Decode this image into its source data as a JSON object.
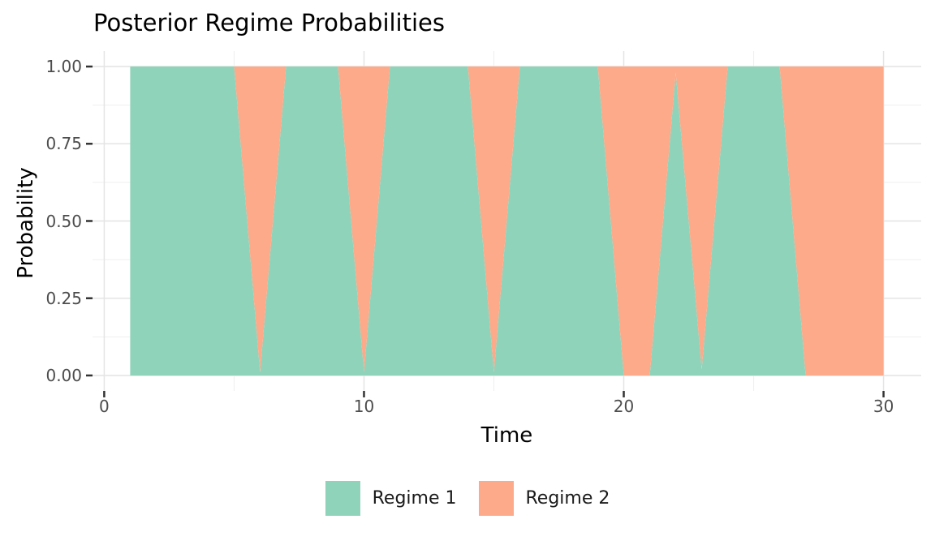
{
  "title": "Posterior Regime Probabilities",
  "chart_data": {
    "type": "area",
    "stacked": true,
    "title": "Posterior Regime Probabilities",
    "xlabel": "Time",
    "ylabel": "Probability",
    "x": [
      1,
      2,
      3,
      4,
      5,
      6,
      7,
      8,
      9,
      10,
      11,
      12,
      13,
      14,
      15,
      16,
      17,
      18,
      19,
      20,
      21,
      22,
      23,
      24,
      25,
      26,
      27,
      28,
      29,
      30
    ],
    "series": [
      {
        "name": "Regime 1",
        "color": "#8FD3BA",
        "values": [
          1,
          1,
          1,
          1,
          1,
          0.01,
          1,
          1,
          1,
          0.01,
          1,
          1,
          1,
          1,
          0.01,
          1,
          1,
          1,
          1,
          0,
          0,
          0.98,
          0.02,
          1,
          1,
          1,
          0,
          0,
          0,
          0
        ]
      },
      {
        "name": "Regime 2",
        "color": "#FCAA8A",
        "values": [
          0,
          0,
          0,
          0,
          0,
          0.99,
          0,
          0,
          0,
          0.99,
          0,
          0,
          0,
          0,
          0.99,
          0,
          0,
          0,
          0,
          1,
          1,
          0.02,
          0.98,
          0,
          0,
          0,
          1,
          1,
          1,
          1
        ]
      }
    ],
    "xlim": [
      0,
      30
    ],
    "ylim": [
      0,
      1
    ],
    "x_ticks": {
      "values": [
        0,
        10,
        20,
        30
      ],
      "labels": [
        "0",
        "10",
        "20",
        "30"
      ],
      "minor": [
        5,
        15,
        25
      ]
    },
    "y_ticks": {
      "values": [
        0,
        0.25,
        0.5,
        0.75,
        1
      ],
      "labels": [
        "0.00",
        "0.25",
        "0.50",
        "0.75",
        "1.00"
      ],
      "minor": [
        0.125,
        0.375,
        0.625,
        0.875
      ]
    },
    "grid": true,
    "legend_position": "bottom"
  },
  "colors": {
    "background": "#FFFFFF",
    "grid_major": "#E4E4E4",
    "grid_minor": "#EFEFEF",
    "tick_mark": "#333333",
    "axis_text": "#4D4D4D",
    "title_text": "#000000",
    "regime1": "#8FD3BA",
    "regime2": "#FCAA8A"
  }
}
